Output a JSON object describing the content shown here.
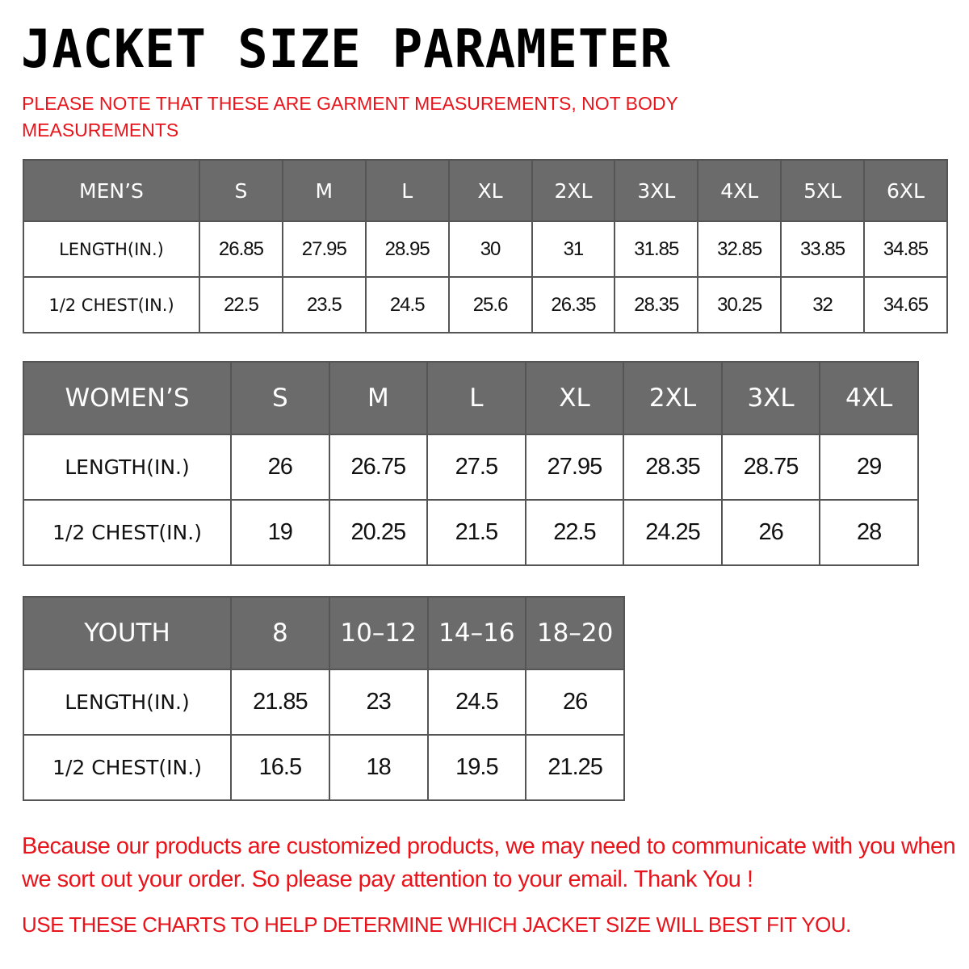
{
  "title": "JACKET SIZE PARAMETER",
  "note": "PLEASE NOTE THAT THESE ARE GARMENT MEASUREMENTS, NOT BODY MEASUREMENTS",
  "colors": {
    "header_bg": "#6b6b6b",
    "accent_red": "#e8141b"
  },
  "tables": {
    "men": {
      "header": [
        "MEN’S",
        "S",
        "M",
        "L",
        "XL",
        "2XL",
        "3XL",
        "4XL",
        "5XL",
        "6XL"
      ],
      "rows": [
        [
          "LENGTH(IN.)",
          "26.85",
          "27.95",
          "28.95",
          "30",
          "31",
          "31.85",
          "32.85",
          "33.85",
          "34.85"
        ],
        [
          "1/2 CHEST(IN.)",
          "22.5",
          "23.5",
          "24.5",
          "25.6",
          "26.35",
          "28.35",
          "30.25",
          "32",
          "34.65"
        ]
      ]
    },
    "women": {
      "header": [
        "WOMEN’S",
        "S",
        "M",
        "L",
        "XL",
        "2XL",
        "3XL",
        "4XL"
      ],
      "rows": [
        [
          "LENGTH(IN.)",
          "26",
          "26.75",
          "27.5",
          "27.95",
          "28.35",
          "28.75",
          "29"
        ],
        [
          "1/2 CHEST(IN.)",
          "19",
          "20.25",
          "21.5",
          "22.5",
          "24.25",
          "26",
          "28"
        ]
      ]
    },
    "youth": {
      "header": [
        "YOUTH",
        "8",
        "10–12",
        "14–16",
        "18–20"
      ],
      "rows": [
        [
          "LENGTH(IN.)",
          "21.85",
          "23",
          "24.5",
          "26"
        ],
        [
          "1/2 CHEST(IN.)",
          "16.5",
          "18",
          "19.5",
          "21.25"
        ]
      ]
    }
  },
  "footer": {
    "message": "Because our products are customized products, we may need to communicate with you when we sort out your order. So please pay attention to your email. Thank You !",
    "instruction": "USE THESE CHARTS TO HELP DETERMINE WHICH JACKET SIZE WILL BEST FIT YOU."
  }
}
